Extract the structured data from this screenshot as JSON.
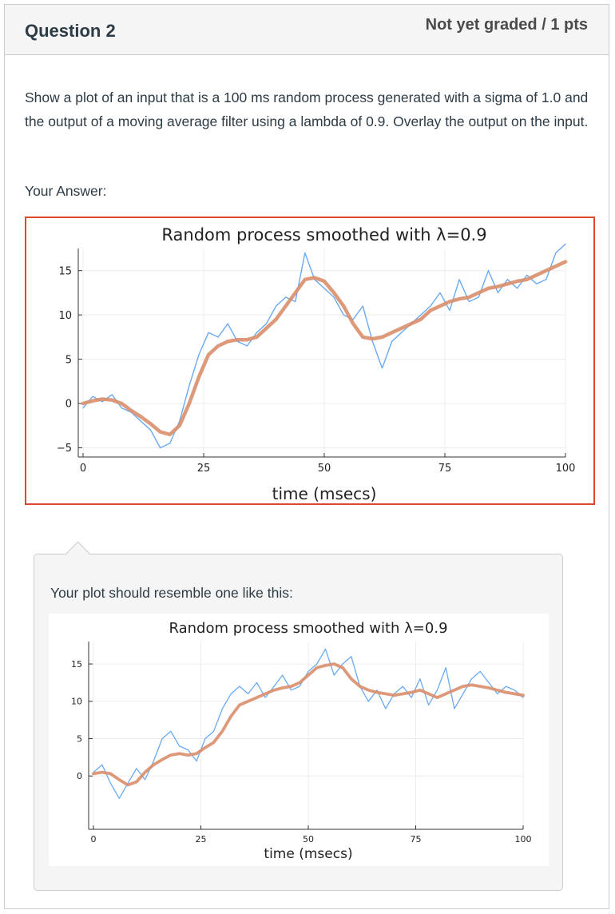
{
  "question": {
    "title": "Question 2",
    "points": "Not yet graded / 1 pts",
    "text": "Show a plot of an input that is a 100 ms random process generated with a sigma of 1.0 and the output of a moving average filter using a lambda of 0.9.  Overlay the output on the input."
  },
  "answer": {
    "label": "Your Answer:"
  },
  "comment": {
    "text": "Your plot should resemble one like this:"
  },
  "colors": {
    "input": "#6aaaf0",
    "output": "#d98e6a",
    "answer_border": "#e0472f"
  },
  "chart_data": [
    {
      "type": "line",
      "title": "Random process smoothed with λ=0.9",
      "xlabel": "time (msecs)",
      "ylabel": "",
      "xlim": [
        0,
        100
      ],
      "ylim": [
        -5.5,
        17.5
      ],
      "xticks": [
        0,
        25,
        50,
        75,
        100
      ],
      "yticks": [
        -5,
        0,
        5,
        10,
        15
      ],
      "ytick_labels": [
        "−5",
        "0",
        "5",
        "10",
        "15"
      ],
      "grid": true,
      "series": [
        {
          "values_x": [
            0,
            2,
            4,
            6,
            8,
            10,
            12,
            14,
            16,
            18,
            20,
            22,
            24,
            26,
            28,
            30,
            32,
            34,
            36,
            38,
            40,
            42,
            44,
            46,
            48,
            50,
            52,
            54,
            56,
            58,
            60,
            62,
            64,
            66,
            68,
            70,
            72,
            74,
            76,
            78,
            80,
            82,
            84,
            86,
            88,
            90,
            92,
            94,
            96,
            98,
            100
          ],
          "values": [
            -0.5,
            0.8,
            0.2,
            1.0,
            -0.5,
            -1.0,
            -2.0,
            -3.0,
            -5.0,
            -4.5,
            -2.0,
            2.0,
            5.5,
            8.0,
            7.5,
            9.0,
            7.0,
            6.5,
            8.0,
            9.0,
            11.0,
            12.0,
            11.5,
            17.0,
            14.0,
            13.0,
            12.0,
            10.0,
            9.5,
            11.0,
            7.0,
            4.0,
            7.0,
            8.0,
            9.0,
            10.0,
            11.0,
            12.5,
            10.5,
            14.0,
            11.5,
            12.0,
            15.0,
            12.5,
            14.0,
            13.0,
            14.5,
            13.5,
            14.0,
            17.0,
            18.0
          ]
        },
        {
          "values_x": [
            0,
            2,
            4,
            6,
            8,
            10,
            12,
            14,
            16,
            18,
            20,
            22,
            24,
            26,
            28,
            30,
            32,
            34,
            36,
            38,
            40,
            42,
            44,
            46,
            48,
            50,
            52,
            54,
            56,
            58,
            60,
            62,
            64,
            66,
            68,
            70,
            72,
            74,
            76,
            78,
            80,
            82,
            84,
            86,
            88,
            90,
            92,
            94,
            96,
            98,
            100
          ],
          "values": [
            0.0,
            0.3,
            0.5,
            0.4,
            0.0,
            -0.8,
            -1.5,
            -2.3,
            -3.2,
            -3.5,
            -2.5,
            0.0,
            3.0,
            5.5,
            6.5,
            7.0,
            7.2,
            7.2,
            7.5,
            8.5,
            9.5,
            11.0,
            12.5,
            14.0,
            14.2,
            13.8,
            12.5,
            11.0,
            9.0,
            7.5,
            7.3,
            7.5,
            8.0,
            8.5,
            9.0,
            9.5,
            10.5,
            11.0,
            11.5,
            11.8,
            12.0,
            12.5,
            13.0,
            13.2,
            13.5,
            13.8,
            14.0,
            14.5,
            15.0,
            15.5,
            16.0
          ]
        }
      ]
    },
    {
      "type": "line",
      "title": "Random process smoothed with λ=0.9",
      "xlabel": "time (msecs)",
      "ylabel": "",
      "xlim": [
        0,
        100
      ],
      "ylim": [
        -6.5,
        18
      ],
      "xticks": [
        0,
        25,
        50,
        75,
        100
      ],
      "yticks": [
        0,
        5,
        10,
        15
      ],
      "ytick_labels": [
        "0",
        "5",
        "10",
        "15"
      ],
      "grid": true,
      "series": [
        {
          "values_x": [
            0,
            2,
            4,
            6,
            8,
            10,
            12,
            14,
            16,
            18,
            20,
            22,
            24,
            26,
            28,
            30,
            32,
            34,
            36,
            38,
            40,
            42,
            44,
            46,
            48,
            50,
            52,
            54,
            56,
            58,
            60,
            62,
            64,
            66,
            68,
            70,
            72,
            74,
            76,
            78,
            80,
            82,
            84,
            86,
            88,
            90,
            92,
            94,
            96,
            98,
            100
          ],
          "values": [
            0.5,
            1.5,
            -1.0,
            -3.0,
            -1.0,
            1.0,
            -0.5,
            2.0,
            5.0,
            6.0,
            4.0,
            3.5,
            2.0,
            5.0,
            6.0,
            9.0,
            11.0,
            12.0,
            11.0,
            12.5,
            10.5,
            12.0,
            13.5,
            11.5,
            12.0,
            14.0,
            15.0,
            17.0,
            13.5,
            15.0,
            16.0,
            12.0,
            10.0,
            11.5,
            9.0,
            11.0,
            12.0,
            10.5,
            13.0,
            9.5,
            11.5,
            14.5,
            9.0,
            11.0,
            13.0,
            14.0,
            12.5,
            11.0,
            12.0,
            11.5,
            10.5
          ]
        },
        {
          "values_x": [
            0,
            2,
            4,
            6,
            8,
            10,
            12,
            14,
            16,
            18,
            20,
            22,
            24,
            26,
            28,
            30,
            32,
            34,
            36,
            38,
            40,
            42,
            44,
            46,
            48,
            50,
            52,
            54,
            56,
            58,
            60,
            62,
            64,
            66,
            68,
            70,
            72,
            74,
            76,
            78,
            80,
            82,
            84,
            86,
            88,
            90,
            92,
            94,
            96,
            98,
            100
          ],
          "values": [
            0.3,
            0.5,
            0.3,
            -0.5,
            -1.2,
            -0.8,
            0.5,
            1.5,
            2.2,
            2.8,
            3.0,
            2.8,
            3.0,
            3.8,
            4.5,
            6.0,
            8.0,
            9.5,
            10.0,
            10.5,
            11.0,
            11.5,
            11.8,
            12.0,
            12.5,
            13.5,
            14.5,
            14.8,
            15.0,
            14.5,
            13.0,
            12.0,
            11.5,
            11.2,
            11.0,
            10.8,
            11.0,
            11.2,
            11.5,
            11.0,
            10.5,
            11.0,
            11.5,
            12.0,
            12.2,
            12.0,
            11.8,
            11.5,
            11.2,
            11.0,
            10.8
          ]
        }
      ]
    }
  ]
}
